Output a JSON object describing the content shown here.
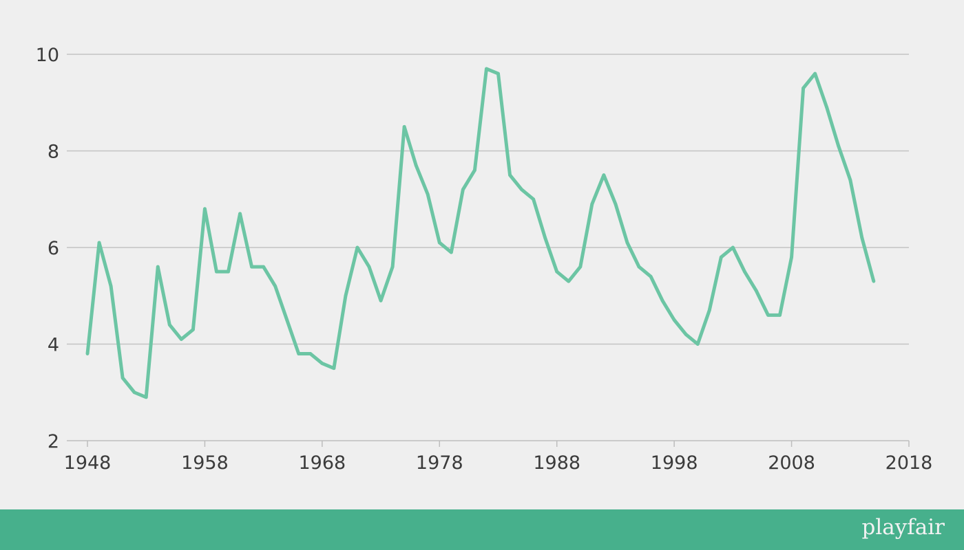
{
  "chart_data": {
    "type": "line",
    "x": [
      1948,
      1949,
      1950,
      1951,
      1952,
      1953,
      1954,
      1955,
      1956,
      1957,
      1958,
      1959,
      1960,
      1961,
      1962,
      1963,
      1964,
      1965,
      1966,
      1967,
      1968,
      1969,
      1970,
      1971,
      1972,
      1973,
      1974,
      1975,
      1976,
      1977,
      1978,
      1979,
      1980,
      1981,
      1982,
      1983,
      1984,
      1985,
      1986,
      1987,
      1988,
      1989,
      1990,
      1991,
      1992,
      1993,
      1994,
      1995,
      1996,
      1997,
      1998,
      1999,
      2000,
      2001,
      2002,
      2003,
      2004,
      2005,
      2006,
      2007,
      2008,
      2009,
      2010,
      2011,
      2012,
      2013,
      2014,
      2015
    ],
    "series": [
      {
        "values": [
          3.8,
          6.1,
          5.2,
          3.3,
          3.0,
          2.9,
          5.6,
          4.4,
          4.1,
          4.3,
          6.8,
          5.5,
          5.5,
          6.7,
          5.6,
          5.6,
          5.2,
          4.5,
          3.8,
          3.8,
          3.6,
          3.5,
          5.0,
          6.0,
          5.6,
          4.9,
          5.6,
          8.5,
          7.7,
          7.1,
          6.1,
          5.9,
          7.2,
          7.6,
          9.7,
          9.6,
          7.5,
          7.2,
          7.0,
          6.2,
          5.5,
          5.3,
          5.6,
          6.9,
          7.5,
          6.9,
          6.1,
          5.6,
          5.4,
          4.9,
          4.5,
          4.2,
          4.0,
          4.7,
          5.8,
          6.0,
          5.5,
          5.1,
          4.6,
          4.6,
          5.8,
          9.3,
          9.6,
          8.9,
          8.1,
          7.4,
          6.2,
          5.3
        ],
        "color": "#6cc5a4"
      }
    ],
    "xlim": [
      1947,
      2018
    ],
    "ylim": [
      2,
      10
    ],
    "x_ticks": [
      "1948",
      "1958",
      "1968",
      "1978",
      "1988",
      "1998",
      "2008",
      "2018"
    ],
    "y_ticks": [
      "2",
      "4",
      "6",
      "8",
      "10"
    ],
    "grid": "horizontal",
    "title": "",
    "xlabel": "",
    "ylabel": ""
  },
  "footer": {
    "brand": "playfair",
    "background": "#47b08c"
  }
}
